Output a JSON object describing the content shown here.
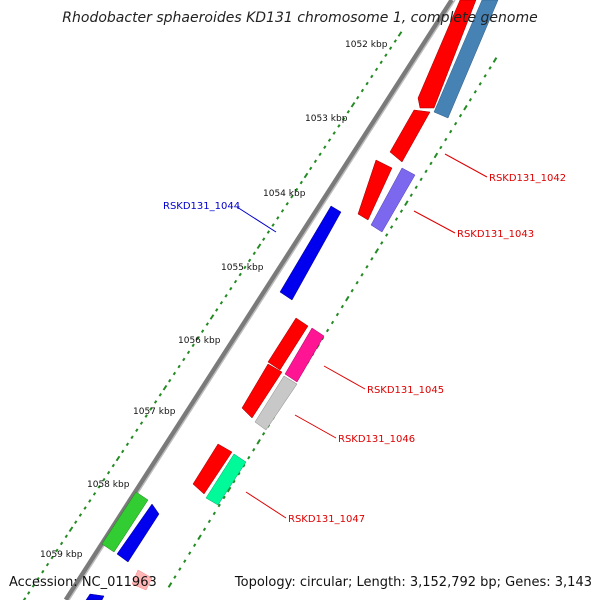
{
  "title": "Rhodobacter sphaeroides KD131 chromosome 1, complete genome",
  "footer": {
    "accession": "Accession: NC_011963",
    "summary": "Topology: circular; Length: 3,152,792 bp; Genes: 3,143"
  },
  "scale_labels": [
    "1052 kbp",
    "1053 kbp",
    "1054 kbp",
    "1055 kbp",
    "1056 kbp",
    "1057 kbp",
    "1058 kbp",
    "1059 kbp"
  ],
  "gene_labels": [
    {
      "text": "RSKD131_1042",
      "color": "#dd0000"
    },
    {
      "text": "RSKD131_1043",
      "color": "#dd0000"
    },
    {
      "text": "RSKD131_1044",
      "color": "#0000cc"
    },
    {
      "text": "RSKD131_1045",
      "color": "#dd0000"
    },
    {
      "text": "RSKD131_1046",
      "color": "#dd0000"
    },
    {
      "text": "RSKD131_1047",
      "color": "#dd0000"
    }
  ],
  "colors": {
    "backbone": "#888888",
    "forward_gene": "#ff0000",
    "reverse_gene": "#0000ff",
    "steelblue_gene": "#4682b4",
    "purple_gene": "#7b68ee",
    "pink_gene": "#ff1493",
    "grey_gene": "#c8c8c8",
    "mint_gene": "#00fa9a",
    "green_gene": "#32cd32",
    "scale_tick": "#228b22"
  }
}
